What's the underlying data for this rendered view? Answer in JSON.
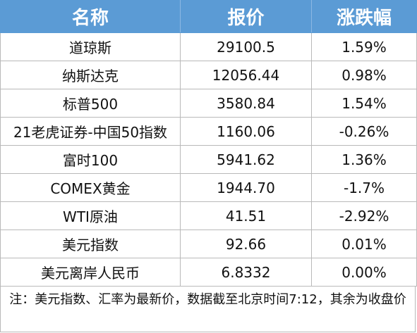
{
  "table": {
    "headers": [
      "名称",
      "报价",
      "涨跌幅"
    ],
    "rows": [
      {
        "name": "道琼斯",
        "price": "29100.5",
        "change": "1.59%"
      },
      {
        "name": "纳斯达克",
        "price": "12056.44",
        "change": "0.98%"
      },
      {
        "name": "标普500",
        "price": "3580.84",
        "change": "1.54%"
      },
      {
        "name": "21老虎证券-中国50指数",
        "price": "1160.06",
        "change": "-0.26%"
      },
      {
        "name": "富时100",
        "price": "5941.62",
        "change": "1.36%"
      },
      {
        "name": "COMEX黄金",
        "price": "1944.70",
        "change": "-1.7%"
      },
      {
        "name": "WTI原油",
        "price": "41.51",
        "change": "-2.92%"
      },
      {
        "name": "美元指数",
        "price": "92.66",
        "change": "0.01%"
      },
      {
        "name": "美元离岸人民币",
        "price": "6.8332",
        "change": "0.00%"
      }
    ]
  },
  "note": "注：美元指数、汇率为最新价，数据截至北京时间7:12，其余为收盘价",
  "colors": {
    "header_bg": "#5b9bd5",
    "header_text": "#ffffff",
    "border": "#b9b9b9"
  }
}
